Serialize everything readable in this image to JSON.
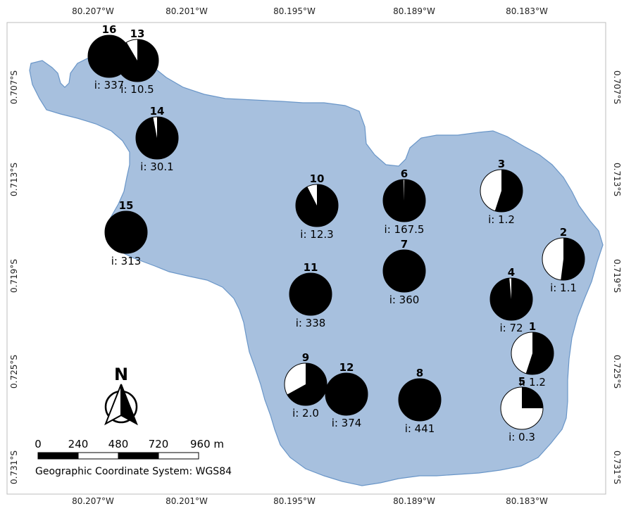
{
  "map": {
    "water_color": "#a7c0de",
    "water_stroke": "#6a96c8",
    "pie_fill": "#000000",
    "pie_background": "#ffffff",
    "lon_ticks_top": [
      "80.207°W",
      "80.201°W",
      "80.195°W",
      "80.189°W",
      "80.183°W"
    ],
    "lon_ticks_bottom": [
      "80.207°W",
      "80.201°W",
      "80.195°W",
      "80.189°W",
      "80.183°W"
    ],
    "lat_ticks_left": [
      "0.707°S",
      "0.713°S",
      "0.719°S",
      "0.725°S",
      "0.731°S"
    ],
    "lat_ticks_right": [
      "0.707°S",
      "0.713°S",
      "0.719°S",
      "0.725°S",
      "0.731°S"
    ]
  },
  "stations": [
    {
      "id": "1",
      "label": "i: 1.2",
      "dark_fraction": 0.55
    },
    {
      "id": "2",
      "label": "i: 1.1",
      "dark_fraction": 0.52
    },
    {
      "id": "3",
      "label": "i: 1.2",
      "dark_fraction": 0.55
    },
    {
      "id": "4",
      "label": "i: 72",
      "dark_fraction": 0.985
    },
    {
      "id": "5",
      "label": "i: 0.3",
      "dark_fraction": 0.25
    },
    {
      "id": "6",
      "label": "i: 167.5",
      "dark_fraction": 0.995
    },
    {
      "id": "7",
      "label": "i: 360",
      "dark_fraction": 1.0
    },
    {
      "id": "8",
      "label": "i: 441",
      "dark_fraction": 1.0
    },
    {
      "id": "9",
      "label": "i: 2.0",
      "dark_fraction": 0.67
    },
    {
      "id": "10",
      "label": "i: 12.3",
      "dark_fraction": 0.925
    },
    {
      "id": "11",
      "label": "i: 338",
      "dark_fraction": 1.0
    },
    {
      "id": "12",
      "label": "i: 374",
      "dark_fraction": 1.0
    },
    {
      "id": "13",
      "label": "i: 10.5",
      "dark_fraction": 0.915
    },
    {
      "id": "14",
      "label": "i: 30.1",
      "dark_fraction": 0.97
    },
    {
      "id": "15",
      "label": "i: 313",
      "dark_fraction": 1.0
    },
    {
      "id": "16",
      "label": "i: 337",
      "dark_fraction": 1.0
    }
  ],
  "north_arrow": {
    "label": "N"
  },
  "scale_bar": {
    "labels": [
      "0",
      "240",
      "480",
      "720",
      "960 m"
    ]
  },
  "crs_text": "Geographic Coordinate System: WGS84"
}
